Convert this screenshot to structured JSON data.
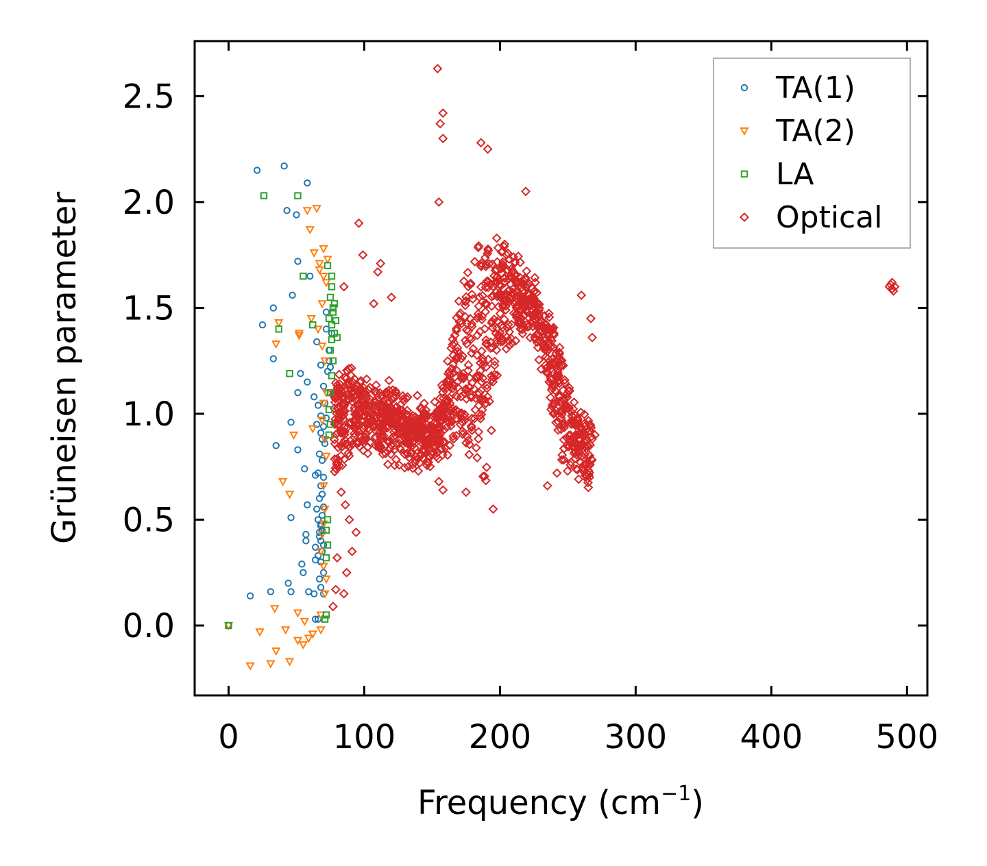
{
  "chart_data": {
    "type": "scatter",
    "title": "",
    "xlabel": "Frequency (cm",
    "xlabel_sup": "−1",
    "xlabel_close": ")",
    "ylabel": "Grüneisen parameter",
    "xlim": [
      -25,
      515
    ],
    "ylim": [
      -0.33,
      2.76
    ],
    "xticks": [
      0,
      100,
      200,
      300,
      400,
      500
    ],
    "xtick_labels": [
      "0",
      "100",
      "200",
      "300",
      "400",
      "500"
    ],
    "yticks": [
      0.0,
      0.5,
      1.0,
      1.5,
      2.0,
      2.5
    ],
    "ytick_labels": [
      "0.0",
      "0.5",
      "1.0",
      "1.5",
      "2.0",
      "2.5"
    ],
    "grid": false,
    "legend_position": "top-right",
    "series": [
      {
        "name": "TA(1)",
        "marker": "circle",
        "color": "#1f77b4",
        "points": [
          [
            0,
            0
          ],
          [
            21,
            2.15
          ],
          [
            41,
            2.17
          ],
          [
            58,
            2.09
          ],
          [
            43,
            1.96
          ],
          [
            50,
            1.94
          ],
          [
            51,
            1.72
          ],
          [
            33,
            1.5
          ],
          [
            47,
            1.56
          ],
          [
            25,
            1.42
          ],
          [
            33,
            1.26
          ],
          [
            53,
            1.19
          ],
          [
            58,
            1.15
          ],
          [
            51,
            1.1
          ],
          [
            63,
            1.08
          ],
          [
            46,
            0.96
          ],
          [
            35,
            0.85
          ],
          [
            51,
            0.83
          ],
          [
            56,
            0.74
          ],
          [
            64,
            0.71
          ],
          [
            46,
            0.51
          ],
          [
            58,
            0.57
          ],
          [
            57,
            0.43
          ],
          [
            57,
            0.4
          ],
          [
            54,
            0.29
          ],
          [
            55,
            0.25
          ],
          [
            64,
            0.31
          ],
          [
            64,
            0.37
          ],
          [
            31,
            0.16
          ],
          [
            16,
            0.14
          ],
          [
            44,
            0.2
          ],
          [
            46,
            0.16
          ],
          [
            59,
            0.16
          ],
          [
            63,
            0.15
          ],
          [
            64,
            0.03
          ],
          [
            66,
            0.03
          ],
          [
            60,
            1.65
          ],
          [
            65,
            1.34
          ],
          [
            68,
            1.23
          ],
          [
            70,
            1.13
          ],
          [
            66,
            1.04
          ],
          [
            68,
            0.99
          ],
          [
            65,
            0.95
          ],
          [
            68,
            0.91
          ],
          [
            69,
            0.88
          ],
          [
            67,
            0.81
          ],
          [
            66,
            0.72
          ],
          [
            68,
            0.66
          ],
          [
            67,
            0.6
          ],
          [
            65,
            0.55
          ],
          [
            66,
            0.5
          ],
          [
            68,
            0.47
          ],
          [
            69,
            0.45
          ],
          [
            67,
            0.42
          ],
          [
            70,
            0.38
          ],
          [
            69,
            0.35
          ],
          [
            66,
            0.33
          ],
          [
            68,
            0.3
          ],
          [
            70,
            0.25
          ],
          [
            67,
            0.22
          ],
          [
            68,
            0.18
          ],
          [
            70,
            0.15
          ],
          [
            72,
            1.4
          ],
          [
            74,
            1.3
          ],
          [
            75,
            1.22
          ],
          [
            73,
            1.2
          ],
          [
            76,
            1.38
          ],
          [
            72,
            1.48
          ],
          [
            74,
            1.25
          ],
          [
            73,
            1.1
          ],
          [
            71,
            1.05
          ],
          [
            72,
            0.98
          ],
          [
            70,
            0.94
          ],
          [
            71,
            0.86
          ],
          [
            69,
            0.78
          ],
          [
            70,
            0.7
          ],
          [
            69,
            0.62
          ],
          [
            70,
            0.56
          ],
          [
            69,
            0.52
          ],
          [
            68,
            0.48
          ],
          [
            67,
            0.44
          ],
          [
            68,
            0.4
          ]
        ]
      },
      {
        "name": "TA(2)",
        "marker": "triangle-down",
        "color": "#ff7f0e",
        "points": [
          [
            0,
            0
          ],
          [
            16,
            -0.19
          ],
          [
            31,
            -0.18
          ],
          [
            45,
            -0.17
          ],
          [
            35,
            -0.12
          ],
          [
            23,
            -0.03
          ],
          [
            42,
            -0.02
          ],
          [
            55,
            -0.09
          ],
          [
            59,
            -0.06
          ],
          [
            51,
            -0.07
          ],
          [
            62,
            -0.04
          ],
          [
            68,
            -0.02
          ],
          [
            34,
            0.08
          ],
          [
            51,
            0.06
          ],
          [
            56,
            0.02
          ],
          [
            40,
            0.68
          ],
          [
            45,
            0.62
          ],
          [
            48,
            0.9
          ],
          [
            62,
            0.93
          ],
          [
            52,
            1.38
          ],
          [
            37,
            1.43
          ],
          [
            35,
            1.33
          ],
          [
            52,
            1.37
          ],
          [
            58,
            1.96
          ],
          [
            65,
            1.97
          ],
          [
            60,
            1.87
          ],
          [
            61,
            1.45
          ],
          [
            67,
            1.71
          ],
          [
            70,
            1.78
          ],
          [
            63,
            1.76
          ],
          [
            67,
            1.68
          ],
          [
            73,
            1.73
          ],
          [
            70,
            1.65
          ],
          [
            69,
            1.52
          ],
          [
            72,
            1.62
          ],
          [
            66,
            1.4
          ],
          [
            69,
            1.32
          ],
          [
            71,
            1.25
          ],
          [
            72,
            1.1
          ],
          [
            70,
            1.05
          ],
          [
            69,
            0.97
          ],
          [
            71,
            0.88
          ],
          [
            72,
            0.8
          ],
          [
            70,
            0.66
          ],
          [
            71,
            0.55
          ],
          [
            70,
            0.48
          ],
          [
            69,
            0.43
          ],
          [
            68,
            0.35
          ],
          [
            70,
            0.28
          ],
          [
            72,
            0.22
          ],
          [
            71,
            0.15
          ],
          [
            68,
            0.05
          ]
        ]
      },
      {
        "name": "LA",
        "marker": "square",
        "color": "#2ca02c",
        "points": [
          [
            0,
            0
          ],
          [
            26,
            2.03
          ],
          [
            51,
            2.03
          ],
          [
            55,
            1.65
          ],
          [
            62,
            1.42
          ],
          [
            37,
            1.4
          ],
          [
            45,
            1.19
          ],
          [
            73,
            1.7
          ],
          [
            76,
            1.65
          ],
          [
            75,
            1.55
          ],
          [
            77,
            1.5
          ],
          [
            74,
            1.45
          ],
          [
            76,
            1.42
          ],
          [
            78,
            1.38
          ],
          [
            76,
            1.35
          ],
          [
            75,
            1.3
          ],
          [
            77,
            1.25
          ],
          [
            76,
            1.18
          ],
          [
            75,
            1.1
          ],
          [
            74,
            1.02
          ],
          [
            75,
            0.95
          ],
          [
            74,
            0.9
          ],
          [
            76,
            1.6
          ],
          [
            78,
            1.52
          ],
          [
            79,
            1.44
          ],
          [
            80,
            1.36
          ],
          [
            77,
            1.48
          ],
          [
            73,
            0.5
          ],
          [
            72,
            0.45
          ],
          [
            73,
            0.38
          ],
          [
            72,
            0.32
          ],
          [
            72,
            0.05
          ],
          [
            71,
            0.03
          ]
        ]
      },
      {
        "name": "Optical",
        "marker": "diamond",
        "color": "#d62728",
        "generator": "dense",
        "points": [
          [
            154,
            2.63
          ],
          [
            158,
            2.42
          ],
          [
            156,
            2.37
          ],
          [
            158,
            2.3
          ],
          [
            155,
            2.0
          ],
          [
            96,
            1.9
          ],
          [
            99,
            1.75
          ],
          [
            112,
            1.71
          ],
          [
            110,
            1.67
          ],
          [
            85,
            1.6
          ],
          [
            107,
            1.52
          ],
          [
            120,
            1.55
          ],
          [
            186,
            2.28
          ],
          [
            191,
            2.25
          ],
          [
            219,
            2.05
          ],
          [
            260,
            1.56
          ],
          [
            267,
            1.45
          ],
          [
            268,
            1.36
          ],
          [
            235,
            0.66
          ],
          [
            270,
            0.9
          ],
          [
            266,
            0.7
          ],
          [
            242,
            0.72
          ],
          [
            155,
            0.68
          ],
          [
            158,
            0.64
          ],
          [
            175,
            0.63
          ],
          [
            195,
            0.55
          ],
          [
            83,
            0.63
          ],
          [
            86,
            0.57
          ],
          [
            89,
            0.5
          ],
          [
            94,
            0.44
          ],
          [
            80,
            0.32
          ],
          [
            87,
            0.25
          ],
          [
            79,
            0.17
          ],
          [
            85,
            0.15
          ],
          [
            77,
            0.09
          ],
          [
            91,
            0.35
          ]
        ],
        "extra_points": [
          [
            487,
            1.6
          ],
          [
            489,
            1.59
          ],
          [
            490,
            1.58
          ],
          [
            488,
            1.61
          ],
          [
            491,
            1.6
          ],
          [
            489,
            1.62
          ]
        ]
      }
    ]
  }
}
